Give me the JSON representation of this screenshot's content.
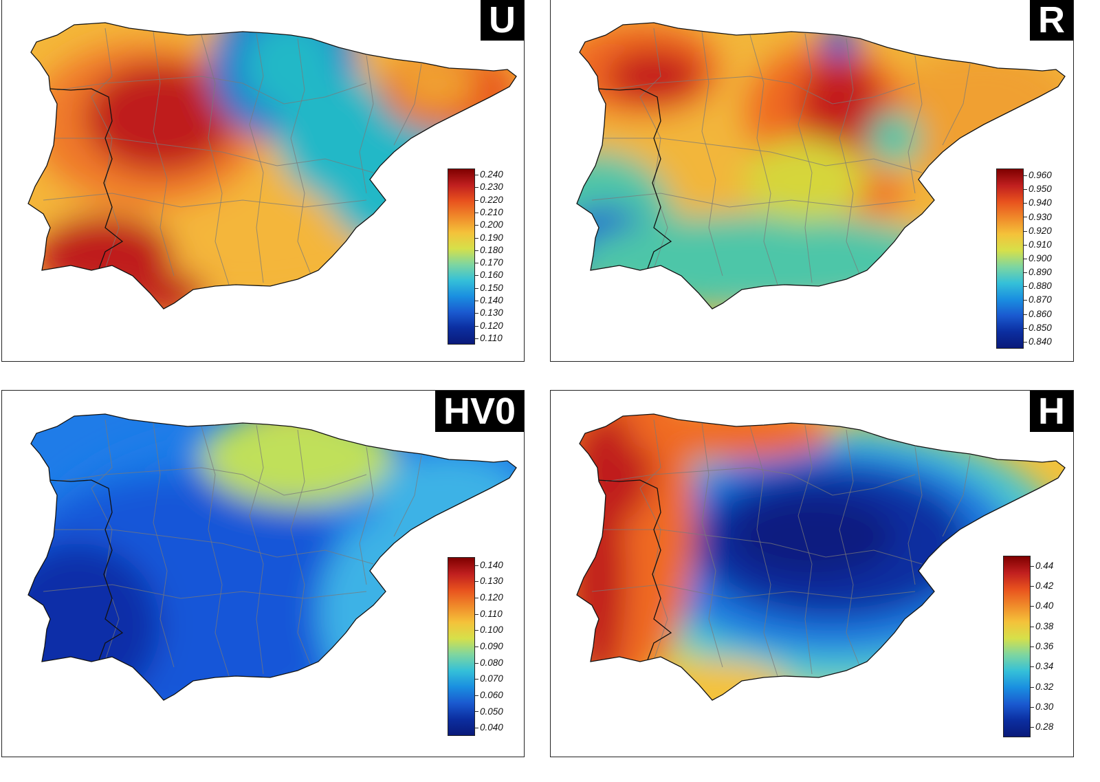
{
  "panels": [
    {
      "label": "U",
      "colors": [
        "#bf1e1e",
        "#f07a2a",
        "#f4b63a",
        "#22b8c7",
        "#1a7ad0",
        "#22b8c7",
        "#f0a030",
        "#e8521e"
      ],
      "legend": {
        "ticks": [
          "0.240",
          "0.230",
          "0.220",
          "0.210",
          "0.200",
          "0.190",
          "0.180",
          "0.170",
          "0.160",
          "0.150",
          "0.140",
          "0.130",
          "0.120",
          "0.110"
        ],
        "range": [
          0.105,
          0.245
        ]
      }
    },
    {
      "label": "R",
      "colors": [
        "#c41a1a",
        "#f06a24",
        "#f2b63a",
        "#d6d63a",
        "#4ec6a8",
        "#1a5fd0",
        "#f0a030",
        "#e8521e"
      ],
      "legend": {
        "ticks": [
          "0.960",
          "0.950",
          "0.940",
          "0.930",
          "0.920",
          "0.910",
          "0.900",
          "0.890",
          "0.880",
          "0.870",
          "0.860",
          "0.850",
          "0.840"
        ],
        "range": [
          0.835,
          0.965
        ]
      }
    },
    {
      "label": "HV0",
      "colors": [
        "#0b2fa8",
        "#1656d8",
        "#1f7ce8",
        "#3cb2e6",
        "#63d3c4",
        "#c0e05a",
        "#e86a20",
        "#b81f1f"
      ],
      "legend": {
        "ticks": [
          "0.140",
          "0.130",
          "0.120",
          "0.110",
          "0.100",
          "0.090",
          "0.080",
          "0.070",
          "0.060",
          "0.050",
          "0.040"
        ],
        "range": [
          0.035,
          0.145
        ]
      }
    },
    {
      "label": "H",
      "colors": [
        "#c01f1f",
        "#f06a24",
        "#f4c23a",
        "#bfe050",
        "#4cc6d0",
        "#1a78e0",
        "#0b2ea0",
        "#0a1f80"
      ],
      "legend": {
        "ticks": [
          "0.44",
          "0.42",
          "0.40",
          "0.38",
          "0.36",
          "0.34",
          "0.32",
          "0.30",
          "0.28"
        ],
        "range": [
          0.27,
          0.45
        ]
      }
    }
  ]
}
